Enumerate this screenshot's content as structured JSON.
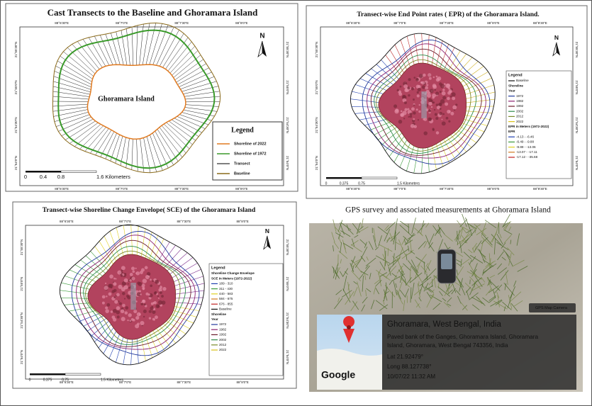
{
  "panels": [
    {
      "title": "Cast Transects to the Baseline and Ghoramara Island",
      "island_label": "Ghoramara Island",
      "north": "N",
      "lon_labels": [
        "88°6'30\"E",
        "88°7'0\"E",
        "88°7'30\"E",
        "88°8'0\"E"
      ],
      "lat_labels": [
        "21°55'30\"N",
        "21°55'0\"N",
        "21°54'30\"N",
        "21°54'0\"N"
      ],
      "legend": {
        "title": "Legend",
        "items": [
          "Shoreline of 2022",
          "Shoreline of 1972",
          "Transect",
          "Baseline"
        ]
      },
      "scale": [
        "0",
        "0.4",
        "0.8",
        "1.6 Kilometers"
      ]
    },
    {
      "title": "Transect-wise End Point rates ( EPR) of the Ghoramara Island.",
      "north": "N",
      "lon_labels": [
        "88°6'30\"E",
        "88°7'0\"E",
        "88°7'30\"E",
        "88°8'0\"E",
        "88°8'30\"E"
      ],
      "lat_labels": [
        "21°55'30\"N",
        "21°55'0\"N",
        "21°54'30\"N",
        "21°54'0\"N"
      ],
      "legend": {
        "title": "Legend",
        "baseline": "Baseline",
        "shoreline": "Shoreline",
        "year": "Year",
        "years": [
          "1972",
          "1982",
          "1992",
          "2002",
          "2012",
          "2022"
        ],
        "class_title": [
          "EPR in Meters (1972-2022)"
        ],
        "class_sub": "EPR",
        "classes": [
          "-4.13 - -6.46",
          "-6.49 - -9.88",
          "-9.89 - -13.06",
          "-13.07 - -17.11",
          "-17.12 - -35.68"
        ]
      },
      "scale": [
        "0",
        "0.375",
        "0.75",
        "1.5 Kilometers"
      ]
    },
    {
      "title": "Transect-wise  Shoreline Change Envelope( SCE) of the Ghoramara Island",
      "north": "N",
      "lon_labels": [
        "88°6'30\"E",
        "88°7'0\"E",
        "88°7'30\"E",
        "88°8'0\"E"
      ],
      "lat_labels": [
        "21°55'30\"N",
        "21°55'0\"N",
        "21°54'30\"N",
        "21°54'0\"N"
      ],
      "legend": {
        "title": "Legend",
        "class_title": [
          "Shoreline Change Envelope",
          "SCE  in  Meters (1972-2022)"
        ],
        "classes": [
          "189 - 310",
          "311 - 430",
          "440 - 583",
          "584 - 675",
          "676 - 855"
        ],
        "baseline": "Baseline",
        "shoreline": "Shoreline",
        "year": "Year",
        "years": [
          "1972",
          "1982",
          "1992",
          "2002",
          "2012",
          "2022"
        ]
      },
      "scale": [
        "0",
        "0.375",
        "0.75",
        "1.5 Kilometers"
      ]
    }
  ],
  "caption": "GPS survey and associated measurements at Ghoramara Island",
  "photo": {
    "app": "GPS Map Camera",
    "place": "Ghoramara, West Bengal, India",
    "address": [
      "Paved bank of the Ganges, Ghoramara Island, Ghoramara",
      "Island, Ghoramara, West Bengal 743356, India"
    ],
    "lat": "Lat 21.92479°",
    "long": "Long 88.127738°",
    "datetime": "10/07/22 11:32 AM",
    "logo": "Google"
  }
}
